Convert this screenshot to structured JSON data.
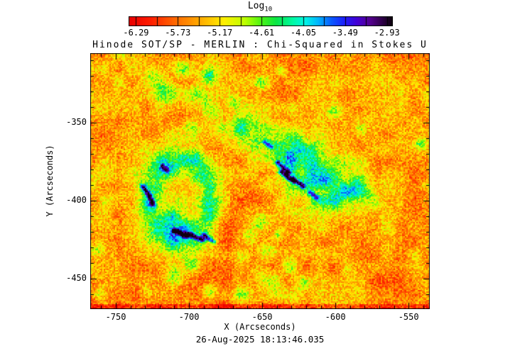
{
  "colorbar": {
    "title": "Log",
    "title_subscript": "10",
    "tick_labels": [
      "-6.29",
      "-5.73",
      "-5.17",
      "-4.61",
      "-4.05",
      "-3.49",
      "-2.93"
    ]
  },
  "title": "Hinode SOT/SP - MERLIN : Chi-Squared in Stokes U",
  "axes": {
    "x_label": "X (Arcseconds)",
    "y_label": "Y (Arcseconds)",
    "x_tick_labels": [
      "-750",
      "-700",
      "-650",
      "-600",
      "-550"
    ],
    "y_tick_labels": [
      "-350",
      "-400",
      "-450"
    ]
  },
  "footer": {
    "timestamp": "26-Aug-2025 18:13:46.035"
  },
  "chart_data": {
    "type": "heatmap",
    "title": "Hinode SOT/SP - MERLIN : Chi-Squared in Stokes U",
    "xlabel": "X (Arcseconds)",
    "ylabel": "Y (Arcseconds)",
    "x_range": [
      -767,
      -536
    ],
    "y_range": [
      -469,
      -306
    ],
    "x_major_ticks": [
      -750,
      -700,
      -650,
      -600,
      -550
    ],
    "y_major_ticks": [
      -350,
      -400,
      -450
    ],
    "minor_tick_step": 10,
    "colorbar": {
      "label": "Log10",
      "quantity": "Chi-Squared in Stokes U",
      "range": [
        -6.38,
        -2.86
      ],
      "tick_values": [
        -6.29,
        -6.01,
        -5.73,
        -5.45,
        -5.17,
        -4.89,
        -4.61,
        -4.33,
        -4.05,
        -3.77,
        -3.49,
        -3.21,
        -2.93
      ],
      "labeled_tick_values": [
        -6.29,
        -5.73,
        -5.17,
        -4.61,
        -4.05,
        -3.49,
        -2.93
      ]
    },
    "colormap_stops": [
      [
        0.0,
        235,
        0,
        0
      ],
      [
        0.08,
        255,
        30,
        0
      ],
      [
        0.18,
        255,
        110,
        0
      ],
      [
        0.28,
        255,
        180,
        0
      ],
      [
        0.36,
        255,
        240,
        0
      ],
      [
        0.44,
        190,
        255,
        0
      ],
      [
        0.5,
        80,
        245,
        20
      ],
      [
        0.56,
        10,
        230,
        70
      ],
      [
        0.62,
        0,
        250,
        160
      ],
      [
        0.67,
        0,
        245,
        230
      ],
      [
        0.72,
        0,
        180,
        255
      ],
      [
        0.77,
        10,
        90,
        255
      ],
      [
        0.82,
        30,
        30,
        250
      ],
      [
        0.87,
        70,
        0,
        210
      ],
      [
        0.92,
        85,
        0,
        140
      ],
      [
        1.0,
        15,
        0,
        15
      ]
    ],
    "background_level_log10": -5.52,
    "noise": {
      "fine_amp": 0.36,
      "med_amp": 0.25,
      "coarse_amp": 0.18,
      "column_amp": 0.06
    },
    "grid": {
      "cols": 238,
      "rows": 180
    },
    "seed": 7,
    "features": {
      "left_sunspot_ring": {
        "cx": 0.265,
        "cy": 0.565,
        "rx": 0.125,
        "ry": 0.21,
        "ring_pos": 0.72,
        "ring_width": 0.3,
        "amp": 1.15,
        "center_amp": 0.45,
        "center_sigma": 0.35
      },
      "right_sunspot_ellipses": [
        [
          0.545,
          0.355,
          0.105,
          0.04,
          29,
          1.05
        ],
        [
          0.665,
          0.49,
          0.085,
          0.06,
          20,
          1.2
        ],
        [
          0.77,
          0.545,
          0.055,
          0.035,
          12,
          0.95
        ],
        [
          0.26,
          0.7,
          0.065,
          0.035,
          15,
          0.7
        ]
      ],
      "green_blobs": [
        [
          0.175,
          0.095,
          0.02,
          0.85
        ],
        [
          0.225,
          0.145,
          0.025,
          0.9
        ],
        [
          0.27,
          0.06,
          0.018,
          0.8
        ],
        [
          0.315,
          0.165,
          0.022,
          0.85
        ],
        [
          0.35,
          0.08,
          0.016,
          0.8
        ],
        [
          0.345,
          0.225,
          0.02,
          0.9
        ],
        [
          0.385,
          0.3,
          0.022,
          0.85
        ],
        [
          0.42,
          0.19,
          0.015,
          0.75
        ],
        [
          0.3,
          0.285,
          0.018,
          0.8
        ],
        [
          0.44,
          0.285,
          0.016,
          0.8
        ],
        [
          0.5,
          0.865,
          0.022,
          0.9
        ],
        [
          0.545,
          0.9,
          0.018,
          0.85
        ],
        [
          0.585,
          0.835,
          0.015,
          0.8
        ],
        [
          0.625,
          0.905,
          0.014,
          0.75
        ],
        [
          0.445,
          0.945,
          0.016,
          0.8
        ],
        [
          0.245,
          0.875,
          0.018,
          0.8
        ],
        [
          0.3,
          0.83,
          0.016,
          0.75
        ],
        [
          0.35,
          0.935,
          0.015,
          0.8
        ],
        [
          0.165,
          0.94,
          0.012,
          0.7
        ],
        [
          0.012,
          0.775,
          0.015,
          0.85
        ],
        [
          0.02,
          0.945,
          0.013,
          0.8
        ],
        [
          0.975,
          0.35,
          0.012,
          0.8
        ],
        [
          0.995,
          0.52,
          0.012,
          0.75
        ],
        [
          0.5,
          0.665,
          0.018,
          0.8
        ],
        [
          0.47,
          0.72,
          0.016,
          0.75
        ],
        [
          0.52,
          0.775,
          0.018,
          0.8
        ],
        [
          0.445,
          0.8,
          0.014,
          0.7
        ],
        [
          0.555,
          0.72,
          0.013,
          0.7
        ],
        [
          0.72,
          0.23,
          0.014,
          0.7
        ],
        [
          0.8,
          0.3,
          0.012,
          0.65
        ],
        [
          0.5,
          0.115,
          0.013,
          0.7
        ],
        [
          0.565,
          0.065,
          0.011,
          0.65
        ]
      ],
      "blue_streaks": [
        [
          0.552,
          0.425,
          0.585,
          0.465,
          1.7
        ],
        [
          0.562,
          0.462,
          0.6,
          0.502,
          1.9
        ],
        [
          0.598,
          0.49,
          0.628,
          0.522,
          1.6
        ],
        [
          0.515,
          0.345,
          0.532,
          0.362,
          1.4
        ],
        [
          0.648,
          0.545,
          0.668,
          0.565,
          1.5
        ],
        [
          0.152,
          0.522,
          0.168,
          0.552,
          1.6
        ],
        [
          0.173,
          0.565,
          0.183,
          0.592,
          1.5
        ],
        [
          0.245,
          0.695,
          0.283,
          0.718,
          1.7
        ],
        [
          0.29,
          0.712,
          0.328,
          0.733,
          1.8
        ],
        [
          0.335,
          0.716,
          0.363,
          0.74,
          1.6
        ],
        [
          0.21,
          0.44,
          0.224,
          0.458,
          1.3
        ]
      ],
      "streak_width": 0.0075,
      "bottom_edge_strip": {
        "start_fraction": 0.988,
        "delta": -0.5
      }
    }
  }
}
